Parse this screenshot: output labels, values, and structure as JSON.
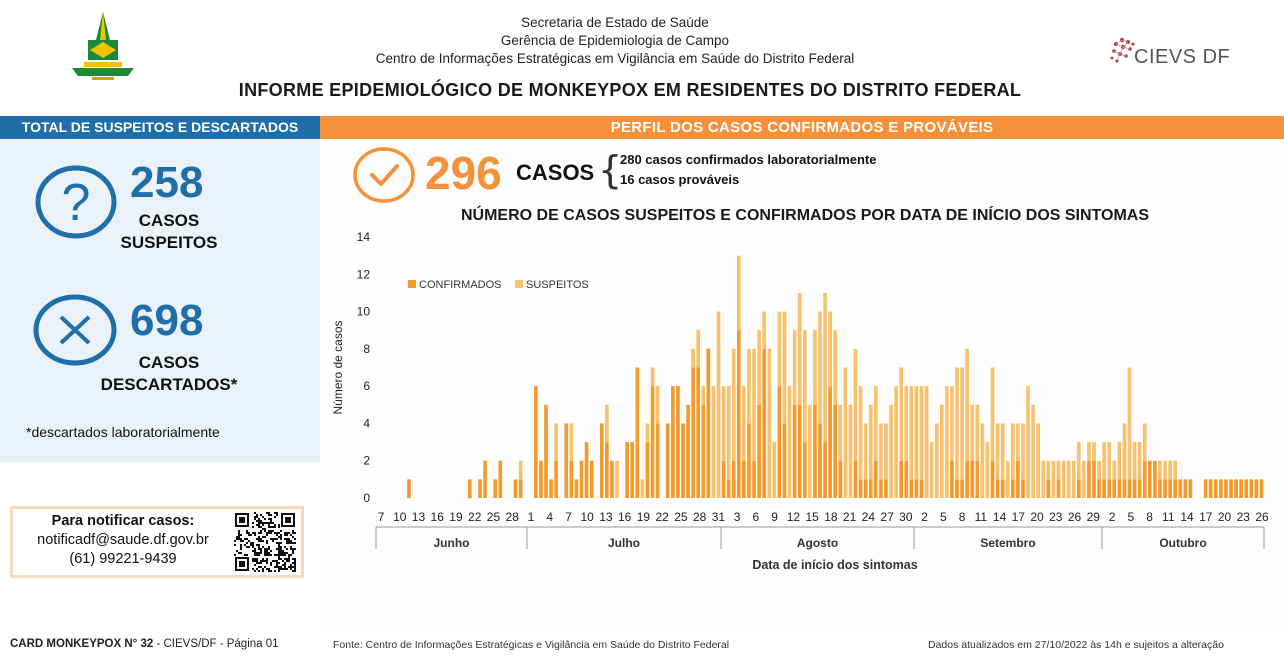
{
  "header": {
    "line1": "Secretaria de Estado de Saúde",
    "line2": "Gerência de Epidemiologia de Campo",
    "line3": "Centro de Informações Estratégicas em Vigilância em Saúde do Distrito Federal",
    "title": "INFORME EPIDEMIOLÓGICO DE MONKEYPOX EM RESIDENTES DO DISTRITO FEDERAL",
    "cievs_logo_text": "CIEVS DF"
  },
  "left": {
    "heading": "TOTAL DE SUSPEITOS E DESCARTADOS",
    "suspects_value": "258",
    "suspects_label_1": "CASOS",
    "suspects_label_2": "SUSPEITOS",
    "discarded_value": "698",
    "discarded_label_1": "CASOS",
    "discarded_label_2": "DESCARTADOS*",
    "footnote": "*descartados laboratorialmente",
    "notify_title": "Para notificar casos:",
    "notify_email": "notificadf@saude.df.gov.br",
    "notify_phone": "(61) 99221-9439"
  },
  "right": {
    "heading": "PERFIL DOS CASOS CONFIRMADOS E PROVÁVEIS",
    "total_value": "296",
    "total_label": "CASOS",
    "detail_1": "280 casos confirmados laboratorialmente",
    "detail_2": "16 casos prováveis"
  },
  "footer": {
    "card_label": "CARD MONKEYPOX N° 32",
    "card_rest": " - CIEVS/DF - Página 01",
    "source": "Fonte: Centro de Informações Estratégicas e Vigilância em Saúde do Distrito Federal",
    "updated": "Dados atualizados em 27/10/2022 às 14h e sujeitos a alteração"
  },
  "colors": {
    "blue": "#1f6ea8",
    "orange": "#f5913a",
    "confirmed": "#f39a2c",
    "suspected": "#f7c26b"
  },
  "chart_data": {
    "type": "bar",
    "stacked": true,
    "title": "NÚMERO DE CASOS SUSPEITOS E CONFIRMADOS POR DATA DE INÍCIO DOS SINTOMAS",
    "xlabel": "Data de início dos sintomas",
    "ylabel": "Número de casos",
    "ylim": [
      0,
      14
    ],
    "yticks": [
      0,
      2,
      4,
      6,
      8,
      10,
      12,
      14
    ],
    "legend_position": "top-left",
    "x_tick_labels": [
      "7",
      "10",
      "13",
      "16",
      "19",
      "22",
      "25",
      "28",
      "1",
      "4",
      "7",
      "10",
      "13",
      "16",
      "19",
      "22",
      "25",
      "28",
      "31",
      "3",
      "6",
      "9",
      "12",
      "15",
      "18",
      "21",
      "24",
      "27",
      "30",
      "2",
      "5",
      "8",
      "11",
      "14",
      "17",
      "20",
      "23",
      "26",
      "29",
      "2",
      "5",
      "8",
      "11",
      "14",
      "17",
      "20",
      "23",
      "26"
    ],
    "months": [
      "Junho",
      "Julho",
      "Agosto",
      "Setembro",
      "Outubro"
    ],
    "series": [
      {
        "name": "CONFIRMADOS",
        "color": "#f39a2c",
        "values": [
          0,
          0,
          0,
          0,
          0,
          0,
          1,
          0,
          0,
          0,
          0,
          0,
          0,
          0,
          0,
          0,
          0,
          0,
          1,
          0,
          1,
          2,
          0,
          1,
          2,
          0,
          0,
          1,
          1,
          0,
          0,
          6,
          2,
          5,
          1,
          2,
          0,
          4,
          2,
          1,
          2,
          3,
          2,
          0,
          4,
          3,
          2,
          0,
          0,
          3,
          3,
          7,
          0,
          3,
          6,
          4,
          0,
          4,
          6,
          6,
          4,
          5,
          7,
          7,
          5,
          8,
          0,
          0,
          2,
          1,
          2,
          9,
          2,
          4,
          2,
          5,
          8,
          0,
          0,
          6,
          4,
          0,
          5,
          5,
          3,
          0,
          5,
          4,
          3,
          6,
          5,
          2,
          0,
          0,
          2,
          1,
          1,
          1,
          2,
          1,
          1,
          0,
          0,
          2,
          2,
          1,
          1,
          1,
          0,
          0,
          0,
          0,
          0,
          2,
          1,
          1,
          2,
          2,
          2,
          0,
          0,
          2,
          1,
          1,
          0,
          1,
          2,
          1,
          0,
          0,
          0,
          0,
          1,
          0,
          1,
          0,
          0,
          0,
          1,
          0,
          2,
          2,
          1,
          1,
          1,
          1,
          1,
          1,
          1,
          1,
          1,
          2,
          2,
          2,
          1,
          1,
          1,
          1,
          1,
          1,
          1,
          0,
          0,
          1,
          1,
          1,
          1,
          1,
          1,
          1,
          1,
          1,
          1,
          1,
          1
        ]
      },
      {
        "name": "SUSPEITOS",
        "color": "#f7c26b",
        "values": [
          0,
          0,
          0,
          0,
          0,
          0,
          0,
          0,
          0,
          0,
          0,
          0,
          0,
          0,
          0,
          0,
          0,
          0,
          0,
          0,
          0,
          0,
          0,
          0,
          0,
          0,
          0,
          0,
          1,
          0,
          0,
          0,
          0,
          0,
          0,
          2,
          0,
          0,
          2,
          0,
          0,
          0,
          0,
          0,
          0,
          2,
          0,
          2,
          0,
          0,
          0,
          0,
          1,
          1,
          1,
          2,
          0,
          0,
          0,
          0,
          0,
          0,
          1,
          2,
          1,
          0,
          6,
          10,
          4,
          5,
          6,
          4,
          4,
          4,
          6,
          4,
          2,
          8,
          3,
          4,
          6,
          6,
          4,
          6,
          6,
          5,
          4,
          6,
          8,
          4,
          4,
          3,
          7,
          5,
          6,
          5,
          3,
          4,
          4,
          3,
          3,
          5,
          6,
          5,
          4,
          5,
          5,
          5,
          6,
          3,
          4,
          5,
          6,
          4,
          6,
          6,
          6,
          3,
          3,
          4,
          3,
          5,
          3,
          3,
          2,
          3,
          2,
          3,
          6,
          5,
          4,
          2,
          1,
          2,
          1,
          2,
          2,
          2,
          2,
          2,
          1,
          1,
          1,
          2,
          2,
          1,
          2,
          3,
          6,
          2,
          2,
          2,
          0,
          0,
          1,
          1,
          1,
          1,
          0,
          0,
          0,
          0,
          0,
          0,
          0,
          0,
          0,
          0,
          0,
          0
        ]
      }
    ]
  }
}
